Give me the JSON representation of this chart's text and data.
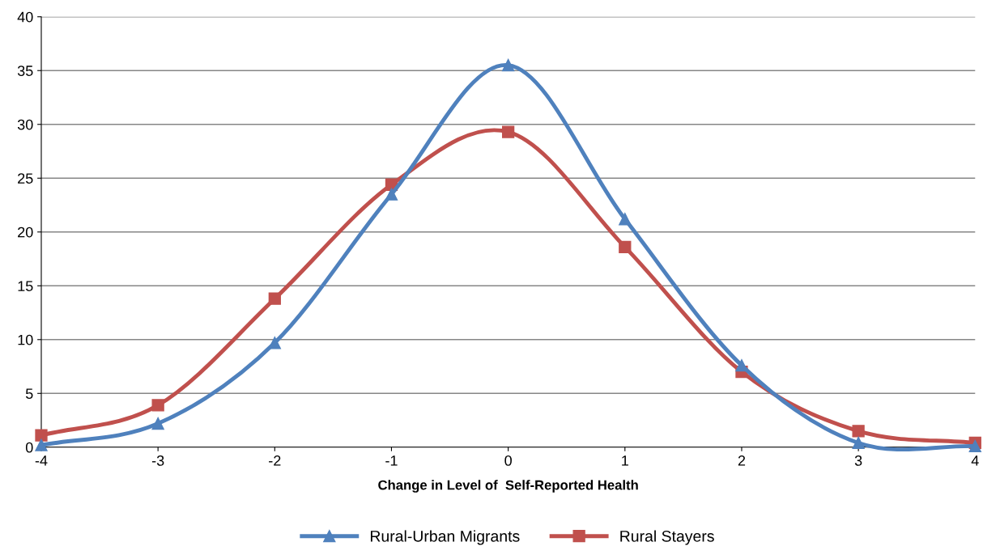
{
  "chart_data": {
    "type": "line",
    "xlabel": "Change in Level of  Self-Reported Health",
    "x": [
      -4,
      -3,
      -2,
      -1,
      0,
      1,
      2,
      3,
      4
    ],
    "series": [
      {
        "name": "Rural-Urban Migrants",
        "color": "#4f81bd",
        "marker": "triangle",
        "values": [
          0.2,
          2.2,
          9.7,
          23.5,
          35.5,
          21.2,
          7.6,
          0.4,
          0.1
        ]
      },
      {
        "name": "Rural Stayers",
        "color": "#c0504d",
        "marker": "square",
        "values": [
          1.1,
          3.9,
          13.8,
          24.4,
          29.3,
          18.6,
          7.0,
          1.5,
          0.4
        ]
      }
    ],
    "xlim": [
      -4,
      4
    ],
    "xticks": [
      -4,
      -3,
      -2,
      -1,
      0,
      1,
      2,
      3,
      4
    ],
    "ylim": [
      0,
      40
    ],
    "yticks": [
      0,
      5,
      10,
      15,
      20,
      25,
      30,
      35,
      40
    ],
    "grid": "y",
    "legend": "bottom",
    "line_style": "solid"
  }
}
